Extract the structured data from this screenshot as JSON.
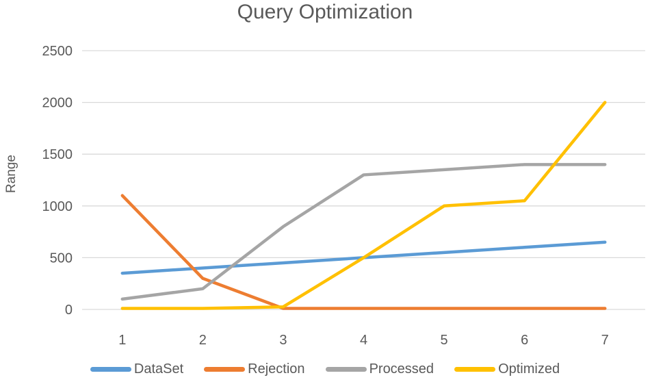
{
  "chart_data": {
    "type": "line",
    "title": "Query Optimization",
    "xlabel": "",
    "ylabel": "Range",
    "categories": [
      "1",
      "2",
      "3",
      "4",
      "5",
      "6",
      "7"
    ],
    "ylim": [
      0,
      2500
    ],
    "yticks": [
      0,
      500,
      1000,
      1500,
      2000,
      2500
    ],
    "grid": "horizontal",
    "legend_position": "bottom",
    "series": [
      {
        "name": "DataSet",
        "color": "#5B9BD5",
        "values": [
          350,
          400,
          450,
          500,
          550,
          600,
          650
        ]
      },
      {
        "name": "Rejection",
        "color": "#ED7D31",
        "values": [
          1100,
          300,
          10,
          10,
          10,
          10,
          10
        ]
      },
      {
        "name": "Processed",
        "color": "#A5A5A5",
        "values": [
          100,
          200,
          800,
          1300,
          1350,
          1400,
          1400
        ]
      },
      {
        "name": "Optimized",
        "color": "#FFC000",
        "values": [
          10,
          10,
          25,
          500,
          1000,
          1050,
          2000
        ]
      }
    ]
  },
  "styles": {
    "text_color": "#595959",
    "gridline_color": "#D9D9D9",
    "background": "#FFFFFF"
  }
}
